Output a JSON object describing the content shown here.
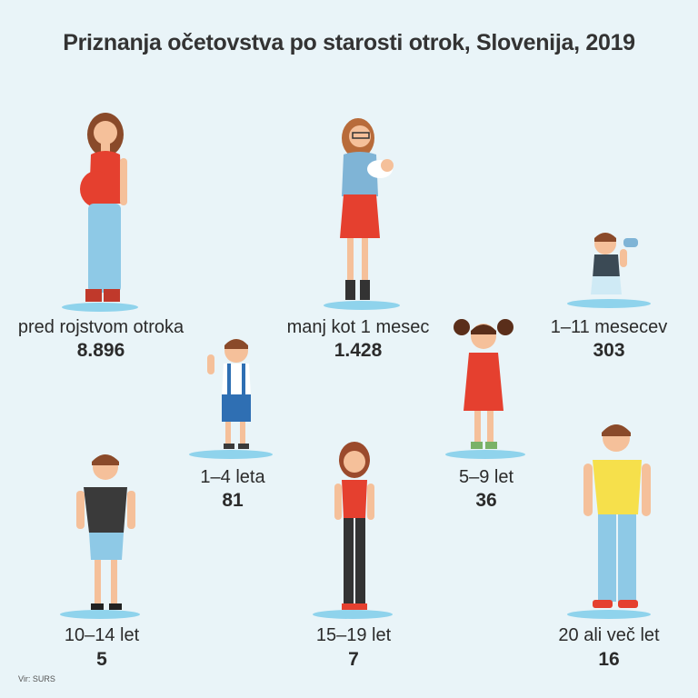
{
  "title": "Priznanja očetovstva po starosti otrok, Slovenija, 2019",
  "source": "Vir: SURS",
  "groups": [
    {
      "label": "pred rojstvom otroka",
      "value": "8.896"
    },
    {
      "label": "manj kot 1 mesec",
      "value": "1.428"
    },
    {
      "label": "1–11 mesecev",
      "value": "303"
    },
    {
      "label": "1–4 leta",
      "value": "81"
    },
    {
      "label": "5–9 let",
      "value": "36"
    },
    {
      "label": "10–14 let",
      "value": "5"
    },
    {
      "label": "15–19 let",
      "value": "7"
    },
    {
      "label": "20 ali več let",
      "value": "16"
    }
  ],
  "colors": {
    "background": "#e9f4f8",
    "platform": "#8fd3ec",
    "skin": "#f5c09a",
    "hair": "#8a4a2a",
    "red": "#e5402f",
    "jeans": "#8ec9e6"
  }
}
